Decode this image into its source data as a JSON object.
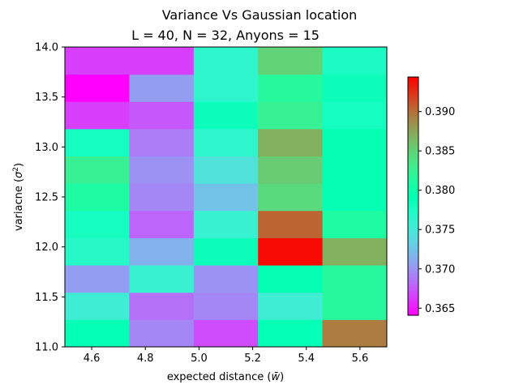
{
  "chart_data": {
    "type": "heatmap",
    "title": "Variance Vs Gaussian location",
    "subtitle": "L = 40, N = 32, Anyons = 15",
    "xlabel": "expected distance (",
    "xlabel_symbol": "w̄",
    "xlabel_close": ")",
    "ylabel": "variacne (",
    "ylabel_symbol": "σ",
    "ylabel_sup": "2",
    "ylabel_close": ")",
    "xlim": [
      4.5,
      5.7
    ],
    "ylim": [
      11.0,
      14.0
    ],
    "x_ticks": [
      4.6,
      4.8,
      5.0,
      5.2,
      5.4,
      5.6
    ],
    "x_tick_labels": [
      "4.6",
      "4.8",
      "5.0",
      "5.2",
      "5.4",
      "5.6"
    ],
    "y_ticks": [
      11.0,
      11.5,
      12.0,
      12.5,
      13.0,
      13.5,
      14.0
    ],
    "y_tick_labels": [
      "11.0",
      "11.5",
      "12.0",
      "12.5",
      "13.0",
      "13.5",
      "14.0"
    ],
    "x_edges": [
      4.5,
      4.74,
      4.98,
      5.22,
      5.46,
      5.7
    ],
    "y_edges": [
      11.0,
      11.273,
      11.545,
      11.818,
      12.091,
      12.364,
      12.636,
      12.909,
      13.182,
      13.455,
      13.727,
      14.0
    ],
    "values": [
      [
        0.379,
        0.3695,
        0.367,
        0.379,
        0.3895
      ],
      [
        0.3755,
        0.3685,
        0.3695,
        0.3755,
        0.3815
      ],
      [
        0.3705,
        0.376,
        0.37,
        0.3795,
        0.3815
      ],
      [
        0.377,
        0.3715,
        0.3785,
        0.394,
        0.387
      ],
      [
        0.378,
        0.368,
        0.376,
        0.3905,
        0.381
      ],
      [
        0.381,
        0.3695,
        0.3725,
        0.3845,
        0.3795
      ],
      [
        0.3825,
        0.37,
        0.3745,
        0.3855,
        0.3795
      ],
      [
        0.378,
        0.369,
        0.3765,
        0.387,
        0.3795
      ],
      [
        0.3665,
        0.3675,
        0.3785,
        0.3825,
        0.378
      ],
      [
        0.364,
        0.3705,
        0.3765,
        0.3815,
        0.3785
      ],
      [
        0.3665,
        0.3665,
        0.3765,
        0.385,
        0.3775
      ]
    ],
    "colormap": "rainbow",
    "vmin": 0.3641,
    "vmax": 0.3944,
    "colorbar_ticks": [
      0.365,
      0.37,
      0.375,
      0.38,
      0.385,
      0.39
    ],
    "colorbar_tick_labels": [
      "0.365",
      "0.370",
      "0.375",
      "0.380",
      "0.385",
      "0.390"
    ]
  }
}
